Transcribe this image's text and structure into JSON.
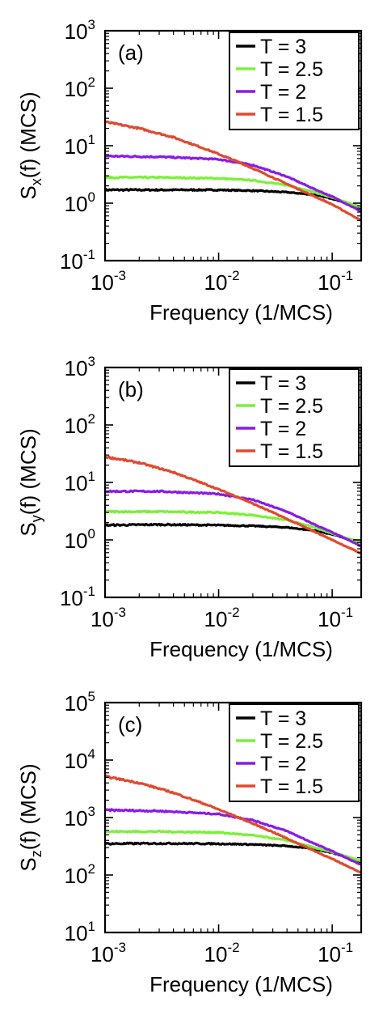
{
  "colors": {
    "T3": "#000000",
    "T2_5": "#7cf03a",
    "T2": "#8a1be6",
    "T1_5": "#e04a2f",
    "frame": "#000000"
  },
  "chart_data": [
    {
      "type": "line",
      "panel_label": "(a)",
      "xlabel": "Frequency (1/MCS)",
      "ylabel_base": "S",
      "ylabel_sub": "x",
      "ylabel_rest": "(f) (MCS)",
      "xscale": "log",
      "yscale": "log",
      "xlim": [
        0.001,
        0.18
      ],
      "ylim": [
        0.1,
        1000
      ],
      "x_ticks": [
        {
          "base": "10",
          "exp": "-3"
        },
        {
          "base": "10",
          "exp": "-2"
        },
        {
          "base": "10",
          "exp": "-1"
        }
      ],
      "y_ticks": [
        {
          "base": "10",
          "exp": "-1"
        },
        {
          "base": "10",
          "exp": "0"
        },
        {
          "base": "10",
          "exp": "1"
        },
        {
          "base": "10",
          "exp": "2"
        },
        {
          "base": "10",
          "exp": "3"
        }
      ],
      "legend_position": "top-right",
      "series": [
        {
          "name": "T = 3",
          "x": [
            0.001,
            0.003,
            0.01,
            0.02,
            0.04,
            0.07,
            0.1,
            0.18
          ],
          "values": [
            1.7,
            1.7,
            1.7,
            1.65,
            1.55,
            1.4,
            1.2,
            0.85
          ]
        },
        {
          "name": "T = 2.5",
          "x": [
            0.001,
            0.003,
            0.01,
            0.02,
            0.04,
            0.07,
            0.1,
            0.18
          ],
          "values": [
            2.8,
            2.8,
            2.7,
            2.5,
            2.05,
            1.55,
            1.25,
            0.85
          ]
        },
        {
          "name": "T = 2",
          "x": [
            0.001,
            0.003,
            0.01,
            0.02,
            0.04,
            0.07,
            0.1,
            0.18
          ],
          "values": [
            6.6,
            6.4,
            5.8,
            4.6,
            2.9,
            1.75,
            1.3,
            0.72
          ]
        },
        {
          "name": "T = 1.5",
          "x": [
            0.001,
            0.002,
            0.004,
            0.008,
            0.015,
            0.03,
            0.06,
            0.1,
            0.18
          ],
          "values": [
            26,
            20,
            14,
            8.5,
            5.2,
            2.8,
            1.5,
            0.95,
            0.5
          ]
        }
      ]
    },
    {
      "type": "line",
      "panel_label": "(b)",
      "xlabel": "Frequency (1/MCS)",
      "ylabel_base": "S",
      "ylabel_sub": "y",
      "ylabel_rest": "(f) (MCS)",
      "xscale": "log",
      "yscale": "log",
      "xlim": [
        0.001,
        0.18
      ],
      "ylim": [
        0.1,
        1000
      ],
      "x_ticks": [
        {
          "base": "10",
          "exp": "-3"
        },
        {
          "base": "10",
          "exp": "-2"
        },
        {
          "base": "10",
          "exp": "-1"
        }
      ],
      "y_ticks": [
        {
          "base": "10",
          "exp": "-1"
        },
        {
          "base": "10",
          "exp": "0"
        },
        {
          "base": "10",
          "exp": "1"
        },
        {
          "base": "10",
          "exp": "2"
        },
        {
          "base": "10",
          "exp": "3"
        }
      ],
      "legend_position": "top-right",
      "series": [
        {
          "name": "T = 3",
          "x": [
            0.001,
            0.003,
            0.01,
            0.02,
            0.04,
            0.07,
            0.1,
            0.18
          ],
          "values": [
            1.8,
            1.85,
            1.8,
            1.75,
            1.65,
            1.45,
            1.25,
            0.9
          ]
        },
        {
          "name": "T = 2.5",
          "x": [
            0.001,
            0.003,
            0.01,
            0.02,
            0.04,
            0.07,
            0.1,
            0.18
          ],
          "values": [
            3.1,
            3.1,
            3.0,
            2.7,
            2.2,
            1.65,
            1.3,
            0.9
          ]
        },
        {
          "name": "T = 2",
          "x": [
            0.001,
            0.003,
            0.01,
            0.02,
            0.04,
            0.07,
            0.1,
            0.18
          ],
          "values": [
            7.0,
            7.0,
            6.3,
            5.0,
            3.1,
            1.85,
            1.35,
            0.78
          ]
        },
        {
          "name": "T = 1.5",
          "x": [
            0.001,
            0.002,
            0.004,
            0.008,
            0.015,
            0.03,
            0.06,
            0.1,
            0.18
          ],
          "values": [
            28,
            22,
            15,
            9.0,
            5.5,
            3.0,
            1.6,
            1.0,
            0.58
          ]
        }
      ]
    },
    {
      "type": "line",
      "panel_label": "(c)",
      "xlabel": "Frequency (1/MCS)",
      "ylabel_base": "S",
      "ylabel_sub": "z",
      "ylabel_rest": "(f) (MCS)",
      "xscale": "log",
      "yscale": "log",
      "xlim": [
        0.001,
        0.18
      ],
      "ylim": [
        10,
        100000
      ],
      "x_ticks": [
        {
          "base": "10",
          "exp": "-3"
        },
        {
          "base": "10",
          "exp": "-2"
        },
        {
          "base": "10",
          "exp": "-1"
        }
      ],
      "y_ticks": [
        {
          "base": "10",
          "exp": "1"
        },
        {
          "base": "10",
          "exp": "2"
        },
        {
          "base": "10",
          "exp": "3"
        },
        {
          "base": "10",
          "exp": "4"
        },
        {
          "base": "10",
          "exp": "5"
        }
      ],
      "legend_position": "top-right",
      "series": [
        {
          "name": "T = 3",
          "x": [
            0.001,
            0.003,
            0.01,
            0.02,
            0.04,
            0.07,
            0.1,
            0.18
          ],
          "values": [
            350,
            355,
            350,
            340,
            320,
            285,
            245,
            170
          ]
        },
        {
          "name": "T = 2.5",
          "x": [
            0.001,
            0.003,
            0.01,
            0.02,
            0.04,
            0.07,
            0.1,
            0.18
          ],
          "values": [
            570,
            570,
            550,
            490,
            400,
            300,
            250,
            175
          ]
        },
        {
          "name": "T = 2",
          "x": [
            0.001,
            0.003,
            0.01,
            0.02,
            0.04,
            0.07,
            0.1,
            0.18
          ],
          "values": [
            1350,
            1300,
            1150,
            900,
            580,
            350,
            260,
            150
          ]
        },
        {
          "name": "T = 1.5",
          "x": [
            0.001,
            0.002,
            0.004,
            0.008,
            0.015,
            0.03,
            0.06,
            0.1,
            0.18
          ],
          "values": [
            5200,
            4000,
            2700,
            1650,
            1000,
            560,
            300,
            190,
            110
          ]
        }
      ]
    }
  ]
}
